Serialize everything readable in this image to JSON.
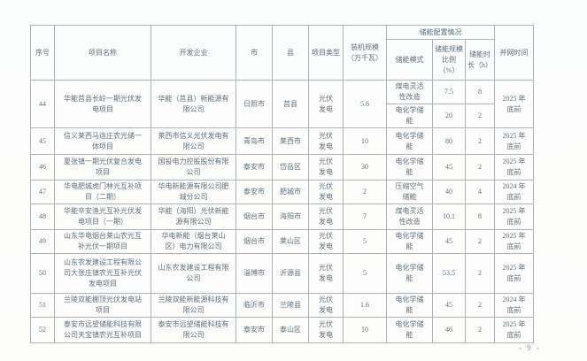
{
  "colors": {
    "text": "#5d6f81",
    "border": "#aeb4ba",
    "muted": "#8d98a4"
  },
  "page": {
    "page_number": "- 9 -"
  },
  "table": {
    "headers": {
      "no": "序号",
      "name": "项目名称",
      "developer": "开发企业",
      "city": "市",
      "county": "县",
      "type": "项目类型",
      "capacity": "装机规模（万千瓦）",
      "storage_group": "储能配置情况",
      "storage_mode": "储能模式",
      "storage_ratio": "储能规模比例（%）",
      "storage_duration": "储能时长（h）",
      "grid_time": "并网时间"
    },
    "rows": [
      {
        "no": "44",
        "name": "华能莒县长岭一期光伏发电项目",
        "developer": "华能（莒县）新能源有限公司",
        "city": "日照市",
        "county": "莒县",
        "type": "光伏发电",
        "capacity": "5.6",
        "storage": [
          {
            "mode": "煤电灵活性改造",
            "ratio": "7.5",
            "duration": "8"
          },
          {
            "mode": "电化学储能",
            "ratio": "20",
            "duration": "2"
          }
        ],
        "grid_time": "2025 年底前"
      },
      {
        "no": "45",
        "name": "信义莱西马连庄农光储一体项目",
        "developer": "莱西市信义光伏发电有限公司",
        "city": "青岛市",
        "county": "莱西市",
        "type": "光伏发电",
        "capacity": "10",
        "storage": [
          {
            "mode": "电化学储能",
            "ratio": "80",
            "duration": "2"
          }
        ],
        "grid_time": "2025 年底前"
      },
      {
        "no": "46",
        "name": "夏张镇一期光伏复合发电项目",
        "developer": "国投电力控股股份有限公司",
        "city": "泰安市",
        "county": "岱岳区",
        "type": "光伏发电",
        "capacity": "30",
        "storage": [
          {
            "mode": "电化学储能",
            "ratio": "45",
            "duration": "2"
          }
        ],
        "grid_time": "2025 年底前"
      },
      {
        "no": "47",
        "name": "华电肥城虎门林光互补项目（二期）",
        "developer": "华电新能源有限公司肥城分公司",
        "city": "泰安市",
        "county": "肥城市",
        "type": "光伏发电",
        "capacity": "2",
        "storage": [
          {
            "mode": "压缩空气储能",
            "ratio": "40",
            "duration": "4"
          }
        ],
        "grid_time": "2024 年底前"
      },
      {
        "no": "48",
        "name": "华能辛安渔光互补光伏发电项目（一期）",
        "developer": "华能（海阳）光伏新能源有限公司",
        "city": "烟台市",
        "county": "海阳市",
        "type": "光伏发电",
        "capacity": "7",
        "storage": [
          {
            "mode": "煤电灵活性改造",
            "ratio": "10.1",
            "duration": "8"
          }
        ],
        "grid_time": "2025 年底前"
      },
      {
        "no": "49",
        "name": "山东华电烟台莱山农光互补光伏一期项目",
        "developer": "华电新能（烟台莱山区）电力有限公司",
        "city": "烟台市",
        "county": "莱山区",
        "type": "光伏发电",
        "capacity": "5",
        "storage": [
          {
            "mode": "电化学储能",
            "ratio": "45",
            "duration": "2"
          }
        ],
        "grid_time": "2025 年底前"
      },
      {
        "no": "50",
        "name": "山东农发建设工程有限公司大张庄镇农光互补光伏发电项目",
        "developer": "山东农发建设工程有限公司",
        "city": "淄博市",
        "county": "沂源县",
        "type": "光伏发电",
        "capacity": "5",
        "storage": [
          {
            "mode": "电化学储能",
            "ratio": "53.5",
            "duration": "2"
          }
        ],
        "grid_time": "2025 年底前"
      },
      {
        "no": "51",
        "name": "兰陵双能棚顶光伏发电站项目",
        "developer": "兰陵双能新能源科技有限公司",
        "city": "临沂市",
        "county": "兰陵县",
        "type": "光伏发电",
        "capacity": "1.6",
        "storage": [
          {
            "mode": "电化学储能",
            "ratio": "45",
            "duration": "2"
          }
        ],
        "grid_time": "2024 年底前"
      },
      {
        "no": "52",
        "name": "泰安市远望储能科技有限公司天宝镇农光互补项目",
        "developer": "泰安市远望储能科技有限公司",
        "city": "泰安市",
        "county": "泰山区",
        "type": "光伏发电",
        "capacity": "10",
        "storage": [
          {
            "mode": "电化学储能",
            "ratio": "46",
            "duration": "2"
          }
        ],
        "grid_time": "2025 年底前"
      }
    ]
  }
}
